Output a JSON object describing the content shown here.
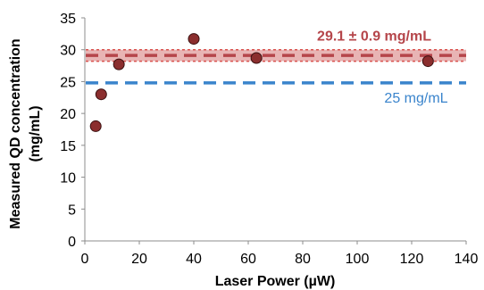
{
  "chart_data": {
    "type": "scatter",
    "xlabel": "Laser Power (µW)",
    "ylabel_line1": "Measured QD concentration",
    "ylabel_line2": "(mg/mL)",
    "xlim": [
      0,
      140
    ],
    "ylim": [
      0,
      35
    ],
    "x_ticks": [
      0,
      20,
      40,
      60,
      80,
      100,
      120,
      140
    ],
    "y_ticks": [
      0,
      5,
      10,
      15,
      20,
      25,
      30,
      35
    ],
    "grid": false,
    "series": [
      {
        "x": [
          4,
          6,
          12.5,
          40,
          63,
          126
        ],
        "y": [
          18,
          23,
          27.7,
          31.7,
          28.7,
          28.2
        ],
        "color": "#8b2e2e"
      }
    ],
    "reference_lines": [
      {
        "y": 29.1,
        "band": [
          28.2,
          30.0
        ],
        "label": "29.1 ± 0.9 mg/mL",
        "color": "#b5454a",
        "band_color": "#e8b4b4"
      },
      {
        "y": 24.8,
        "label": "25 mg/mL",
        "color": "#3a84cc"
      }
    ]
  }
}
